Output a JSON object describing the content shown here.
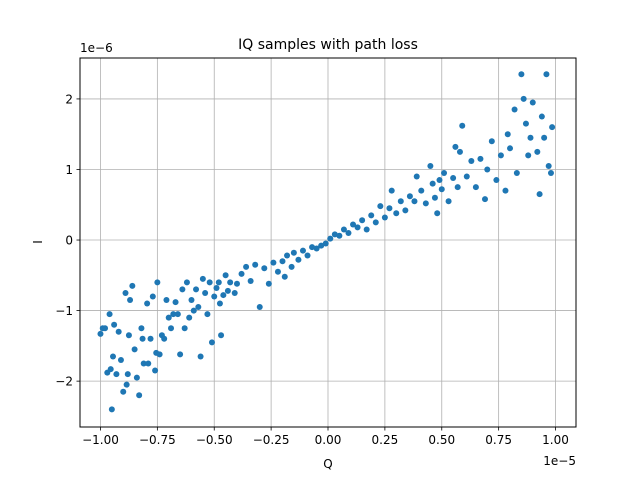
{
  "chart_data": {
    "type": "scatter",
    "title": "IQ samples with path loss",
    "xlabel": "Q",
    "ylabel": "I",
    "x_offset_text": "1e−5",
    "y_offset_text": "1e−6",
    "x_scale": 1e-05,
    "y_scale": 1e-06,
    "xlim": [
      -1.09e-05,
      1.09e-05
    ],
    "ylim": [
      -2.65e-06,
      2.58e-06
    ],
    "xticks": [
      -1e-05,
      -7.5e-06,
      -5e-06,
      -2.5e-06,
      0,
      2.5e-06,
      5e-06,
      7.5e-06,
      1e-05
    ],
    "xtick_labels": [
      "−1.00",
      "−0.75",
      "−0.50",
      "−0.25",
      "0.00",
      "0.25",
      "0.50",
      "0.75",
      "1.00"
    ],
    "yticks": [
      -2e-06,
      -1e-06,
      0,
      1e-06,
      2e-06
    ],
    "ytick_labels": [
      "−2",
      "−1",
      "0",
      "1",
      "2"
    ],
    "grid": true,
    "marker_color": "#1f77b4",
    "points": [
      [
        -1e-05,
        -1.33e-06
      ],
      [
        -9.9e-06,
        -1.25e-06
      ],
      [
        -9.8e-06,
        -1.25e-06
      ],
      [
        -9.7e-06,
        -1.88e-06
      ],
      [
        -9.6e-06,
        -1.05e-06
      ],
      [
        -9.55e-06,
        -1.83e-06
      ],
      [
        -9.5e-06,
        -2.4e-06
      ],
      [
        -9.45e-06,
        -1.65e-06
      ],
      [
        -9.4e-06,
        -1.2e-06
      ],
      [
        -9.3e-06,
        -1.9e-06
      ],
      [
        -9.2e-06,
        -1.3e-06
      ],
      [
        -9.1e-06,
        -1.7e-06
      ],
      [
        -9e-06,
        -2.15e-06
      ],
      [
        -8.9e-06,
        -7.5e-07
      ],
      [
        -8.85e-06,
        -2.05e-06
      ],
      [
        -8.8e-06,
        -1.9e-06
      ],
      [
        -8.75e-06,
        -1.35e-06
      ],
      [
        -8.7e-06,
        -8.5e-07
      ],
      [
        -8.6e-06,
        -6.5e-07
      ],
      [
        -8.5e-06,
        -1.55e-06
      ],
      [
        -8.4e-06,
        -1.95e-06
      ],
      [
        -8.3e-06,
        -2.2e-06
      ],
      [
        -8.2e-06,
        -1.25e-06
      ],
      [
        -8.15e-06,
        -1.4e-06
      ],
      [
        -8.1e-06,
        -1.75e-06
      ],
      [
        -7.95e-06,
        -9e-07
      ],
      [
        -7.9e-06,
        -1.75e-06
      ],
      [
        -7.8e-06,
        -1.4e-06
      ],
      [
        -7.7e-06,
        -8e-07
      ],
      [
        -7.6e-06,
        -1.85e-06
      ],
      [
        -7.55e-06,
        -1.6e-06
      ],
      [
        -7.5e-06,
        -6e-07
      ],
      [
        -7.4e-06,
        -1.62e-06
      ],
      [
        -7.3e-06,
        -1.35e-06
      ],
      [
        -7.2e-06,
        -1.4e-06
      ],
      [
        -7.1e-06,
        -8.5e-07
      ],
      [
        -7e-06,
        -1.1e-06
      ],
      [
        -6.9e-06,
        -1.25e-06
      ],
      [
        -6.8e-06,
        -1.05e-06
      ],
      [
        -6.7e-06,
        -8.8e-07
      ],
      [
        -6.6e-06,
        -1.05e-06
      ],
      [
        -6.5e-06,
        -1.62e-06
      ],
      [
        -6.4e-06,
        -7e-07
      ],
      [
        -6.3e-06,
        -1.25e-06
      ],
      [
        -6.2e-06,
        -6e-07
      ],
      [
        -6.1e-06,
        -1.1e-06
      ],
      [
        -6e-06,
        -8.5e-07
      ],
      [
        -5.9e-06,
        -1e-06
      ],
      [
        -5.8e-06,
        -7e-07
      ],
      [
        -5.7e-06,
        -9.5e-07
      ],
      [
        -5.6e-06,
        -1.65e-06
      ],
      [
        -5.5e-06,
        -5.5e-07
      ],
      [
        -5.4e-06,
        -7.5e-07
      ],
      [
        -5.3e-06,
        -1.05e-06
      ],
      [
        -5.2e-06,
        -6e-07
      ],
      [
        -5.1e-06,
        -1.45e-06
      ],
      [
        -5e-06,
        -8e-07
      ],
      [
        -4.9e-06,
        -6.8e-07
      ],
      [
        -4.8e-06,
        -6e-07
      ],
      [
        -4.75e-06,
        -9e-07
      ],
      [
        -4.7e-06,
        -1.35e-06
      ],
      [
        -4.6e-06,
        -7.8e-07
      ],
      [
        -4.5e-06,
        -5e-07
      ],
      [
        -4.4e-06,
        -7.2e-07
      ],
      [
        -4.3e-06,
        -6e-07
      ],
      [
        -4.1e-06,
        -7.5e-07
      ],
      [
        -4e-06,
        -6.2e-07
      ],
      [
        -3.8e-06,
        -4.8e-07
      ],
      [
        -3.6e-06,
        -3.8e-07
      ],
      [
        -3.4e-06,
        -5.8e-07
      ],
      [
        -3.2e-06,
        -3.5e-07
      ],
      [
        -3e-06,
        -9.5e-07
      ],
      [
        -2.8e-06,
        -4e-07
      ],
      [
        -2.6e-06,
        -6.2e-07
      ],
      [
        -2.4e-06,
        -3.2e-07
      ],
      [
        -2.2e-06,
        -4.5e-07
      ],
      [
        -2e-06,
        -3e-07
      ],
      [
        -1.9e-06,
        -5.2e-07
      ],
      [
        -1.8e-06,
        -2.2e-07
      ],
      [
        -1.6e-06,
        -3.8e-07
      ],
      [
        -1.5e-06,
        -1.8e-07
      ],
      [
        -1.3e-06,
        -2.8e-07
      ],
      [
        -1.1e-06,
        -1.5e-07
      ],
      [
        -9e-07,
        -2.2e-07
      ],
      [
        -7e-07,
        -1e-07
      ],
      [
        -5e-07,
        -1.2e-07
      ],
      [
        -3e-07,
        -8e-08
      ],
      [
        -1e-07,
        -5e-08
      ],
      [
        1e-07,
        2e-08
      ],
      [
        3e-07,
        8e-08
      ],
      [
        5e-07,
        6e-08
      ],
      [
        7e-07,
        1.5e-07
      ],
      [
        9e-07,
        1e-07
      ],
      [
        1.1e-06,
        2.2e-07
      ],
      [
        1.3e-06,
        1.8e-07
      ],
      [
        1.5e-06,
        2.8e-07
      ],
      [
        1.7e-06,
        1.5e-07
      ],
      [
        1.9e-06,
        3.5e-07
      ],
      [
        2.1e-06,
        2.5e-07
      ],
      [
        2.3e-06,
        4.8e-07
      ],
      [
        2.5e-06,
        3.2e-07
      ],
      [
        2.7e-06,
        4.5e-07
      ],
      [
        2.8e-06,
        7e-07
      ],
      [
        3e-06,
        3.8e-07
      ],
      [
        3.2e-06,
        5.5e-07
      ],
      [
        3.4e-06,
        4.2e-07
      ],
      [
        3.6e-06,
        6.2e-07
      ],
      [
        3.8e-06,
        5.5e-07
      ],
      [
        3.9e-06,
        9e-07
      ],
      [
        4.1e-06,
        7e-07
      ],
      [
        4.3e-06,
        5.2e-07
      ],
      [
        4.5e-06,
        1.05e-06
      ],
      [
        4.6e-06,
        8e-07
      ],
      [
        4.7e-06,
        6e-07
      ],
      [
        4.8e-06,
        3.8e-07
      ],
      [
        4.9e-06,
        8.5e-07
      ],
      [
        5e-06,
        7.2e-07
      ],
      [
        5.1e-06,
        9.5e-07
      ],
      [
        5.3e-06,
        5.5e-07
      ],
      [
        5.5e-06,
        8.8e-07
      ],
      [
        5.6e-06,
        1.32e-06
      ],
      [
        5.7e-06,
        7.5e-07
      ],
      [
        5.8e-06,
        1.25e-06
      ],
      [
        5.9e-06,
        1.62e-06
      ],
      [
        6.1e-06,
        9e-07
      ],
      [
        6.3e-06,
        1.12e-06
      ],
      [
        6.5e-06,
        7.5e-07
      ],
      [
        6.7e-06,
        1.15e-06
      ],
      [
        6.9e-06,
        5.8e-07
      ],
      [
        7e-06,
        1e-06
      ],
      [
        7.2e-06,
        1.4e-06
      ],
      [
        7.4e-06,
        8.5e-07
      ],
      [
        7.6e-06,
        1.2e-06
      ],
      [
        7.8e-06,
        7e-07
      ],
      [
        7.9e-06,
        1.5e-06
      ],
      [
        8e-06,
        1.3e-06
      ],
      [
        8.2e-06,
        1.85e-06
      ],
      [
        8.3e-06,
        9.5e-07
      ],
      [
        8.5e-06,
        2.35e-06
      ],
      [
        8.6e-06,
        2e-06
      ],
      [
        8.7e-06,
        1.65e-06
      ],
      [
        8.8e-06,
        1.2e-06
      ],
      [
        8.9e-06,
        1.45e-06
      ],
      [
        9e-06,
        1.95e-06
      ],
      [
        9.2e-06,
        1.25e-06
      ],
      [
        9.3e-06,
        6.5e-07
      ],
      [
        9.4e-06,
        1.75e-06
      ],
      [
        9.5e-06,
        1.45e-06
      ],
      [
        9.6e-06,
        2.35e-06
      ],
      [
        9.7e-06,
        1.05e-06
      ],
      [
        9.8e-06,
        9.5e-07
      ],
      [
        9.85e-06,
        1.6e-06
      ]
    ]
  }
}
